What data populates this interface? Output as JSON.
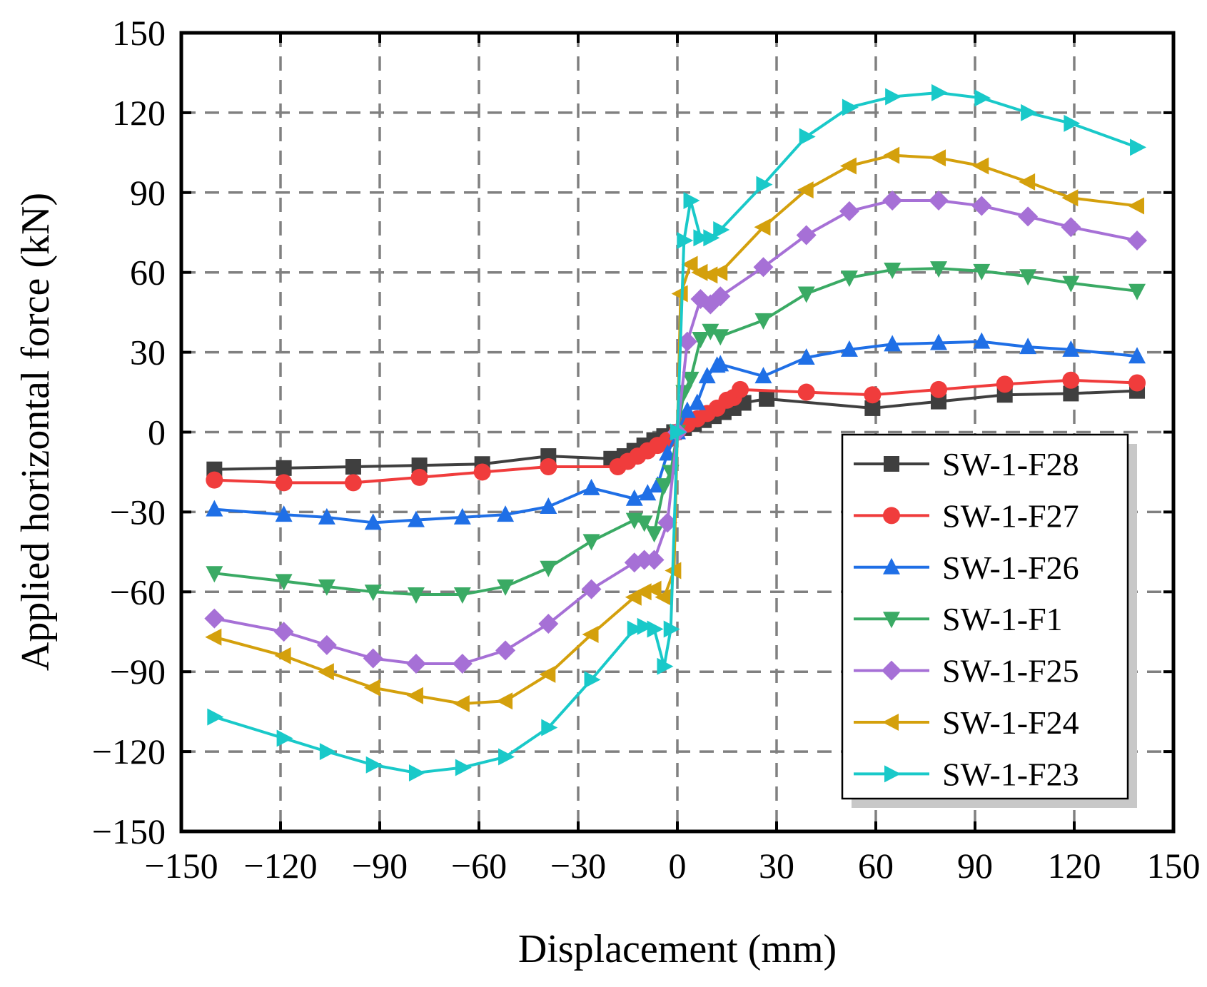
{
  "chart_data": {
    "type": "line",
    "title": "",
    "xlabel": "Displacement (mm)",
    "ylabel": "Applied horizontal force (kN)",
    "xlim": [
      -150,
      150
    ],
    "ylim": [
      -150,
      150
    ],
    "xticks": [
      -150,
      -120,
      -90,
      -60,
      -30,
      0,
      30,
      60,
      90,
      120,
      150
    ],
    "yticks": [
      -150,
      -120,
      -90,
      -60,
      -30,
      0,
      30,
      60,
      90,
      120,
      150
    ],
    "xtick_labels": [
      "−150",
      "−120",
      "−90",
      "−60",
      "−30",
      "0",
      "30",
      "60",
      "90",
      "120",
      "150"
    ],
    "ytick_labels": [
      "−150",
      "−120",
      "−90",
      "−60",
      "−30",
      "0",
      "30",
      "60",
      "90",
      "120",
      "150"
    ],
    "grid": true,
    "legend_position": "lower-right",
    "series": [
      {
        "name": "SW-1-F28",
        "color": "#3f3f3f",
        "marker": "square",
        "x": [
          -140,
          -119,
          -98,
          -78,
          -59,
          -39,
          -20,
          -16,
          -13,
          -10,
          -7,
          -4,
          -1,
          2,
          5,
          8,
          11,
          14,
          17,
          20,
          27,
          59,
          79,
          99,
          119,
          139
        ],
        "y": [
          -14,
          -13.5,
          -13,
          -12.5,
          -12,
          -9,
          -10,
          -9,
          -7,
          -5,
          -3,
          -1.5,
          0,
          1.5,
          3,
          4.5,
          6,
          7.5,
          9,
          11,
          12.5,
          9,
          11.5,
          14,
          14.5,
          15.5
        ]
      },
      {
        "name": "SW-1-F27",
        "color": "#f03c3c",
        "marker": "circle",
        "x": [
          -140,
          -119,
          -98,
          -78,
          -59,
          -39,
          -18,
          -15,
          -12,
          -9,
          -6,
          -3,
          0,
          3,
          6,
          9,
          12,
          15,
          17,
          19,
          39,
          59,
          79,
          99,
          119,
          139
        ],
        "y": [
          -18,
          -19,
          -19,
          -17,
          -15,
          -13,
          -13,
          -11,
          -9,
          -7,
          -5,
          -3,
          0,
          3,
          5,
          7,
          9,
          12,
          13,
          16,
          15,
          14,
          16,
          18,
          19.5,
          18.5
        ]
      },
      {
        "name": "SW-1-F26",
        "color": "#1f6fe6",
        "marker": "triangle-up",
        "x": [
          -140,
          -119,
          -106,
          -92,
          -79,
          -65,
          -52,
          -39,
          -26,
          -13,
          -9,
          -6,
          -3,
          0,
          3,
          6,
          9,
          12,
          13,
          26,
          39,
          52,
          65,
          79,
          92,
          106,
          119,
          139
        ],
        "y": [
          -29,
          -31,
          -32,
          -34,
          -33,
          -32,
          -31,
          -28,
          -21,
          -25,
          -23,
          -20,
          -8,
          0,
          8,
          11,
          21,
          25,
          25.5,
          21,
          28,
          31,
          33,
          33.5,
          34,
          32,
          31,
          28.5
        ]
      },
      {
        "name": "SW-1-F1",
        "color": "#3aaa64",
        "marker": "triangle-down",
        "x": [
          -140,
          -119,
          -106,
          -92,
          -79,
          -65,
          -52,
          -39,
          -26,
          -13,
          -10,
          -7,
          -4,
          -2,
          0,
          2,
          4,
          7,
          10,
          13,
          26,
          39,
          52,
          65,
          79,
          92,
          106,
          119,
          139
        ],
        "y": [
          -53,
          -56,
          -58,
          -60,
          -61,
          -61,
          -58,
          -51,
          -41,
          -33,
          -34,
          -38,
          -20,
          -15,
          0,
          15,
          20,
          35,
          38,
          36,
          42,
          52,
          58,
          61,
          61.5,
          60.5,
          58.5,
          56,
          53
        ]
      },
      {
        "name": "SW-1-F25",
        "color": "#a670d6",
        "marker": "diamond",
        "x": [
          -140,
          -119,
          -106,
          -92,
          -79,
          -65,
          -52,
          -39,
          -26,
          -13,
          -10,
          -7,
          -3,
          0,
          3,
          7,
          10,
          13,
          26,
          39,
          52,
          65,
          79,
          92,
          106,
          119,
          139
        ],
        "y": [
          -70,
          -75,
          -80,
          -85,
          -87,
          -87,
          -82,
          -72,
          -59,
          -49,
          -48,
          -48,
          -34,
          0,
          34,
          50,
          48,
          51,
          62,
          74,
          83,
          87,
          87,
          85,
          81,
          77,
          72
        ]
      },
      {
        "name": "SW-1-F24",
        "color": "#d4a00c",
        "marker": "triangle-left",
        "x": [
          -140,
          -119,
          -106,
          -92,
          -79,
          -65,
          -52,
          -39,
          -26,
          -13,
          -10,
          -7,
          -4,
          -1,
          1,
          4,
          7,
          10,
          13,
          26,
          39,
          52,
          65,
          79,
          92,
          106,
          119,
          139
        ],
        "y": [
          -77,
          -84,
          -90,
          -96,
          -99,
          -102,
          -101,
          -91,
          -76,
          -62,
          -60,
          -59,
          -62,
          -52,
          52,
          63,
          60,
          59,
          60,
          77,
          91,
          100,
          104,
          103,
          100,
          94,
          88,
          85
        ]
      },
      {
        "name": "SW-1-F23",
        "color": "#19c9c9",
        "marker": "triangle-right",
        "x": [
          -140,
          -119,
          -106,
          -92,
          -79,
          -65,
          -52,
          -39,
          -26,
          -13,
          -10,
          -7,
          -4,
          -2,
          0,
          2,
          4,
          7,
          10,
          13,
          26,
          39,
          52,
          65,
          79,
          92,
          106,
          119,
          139
        ],
        "y": [
          -107,
          -115,
          -120,
          -125,
          -128,
          -126,
          -122,
          -111,
          -93,
          -74,
          -73,
          -74,
          -88,
          -74,
          0,
          72,
          87,
          73,
          73,
          76,
          93,
          111,
          122,
          126,
          127.5,
          125.5,
          120,
          116,
          107
        ]
      }
    ]
  }
}
